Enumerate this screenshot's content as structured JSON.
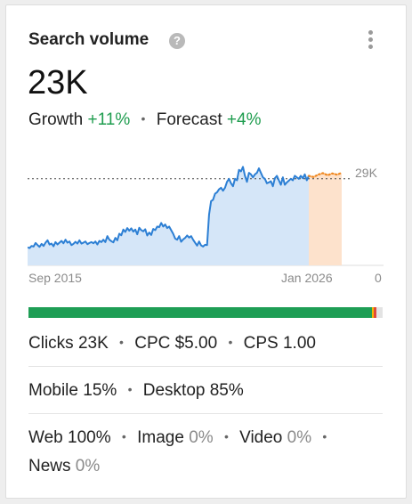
{
  "card": {
    "title": "Search volume",
    "help_icon": "?",
    "menu_icon": "more-vertical-icon"
  },
  "summary": {
    "value": "23K",
    "growth_label": "Growth",
    "growth_value": "+11%",
    "forecast_label": "Forecast",
    "forecast_value": "+4%",
    "separator": "•"
  },
  "chart_data": {
    "type": "area",
    "x_start_label": "Sep 2015",
    "x_end_label": "Jan 2026",
    "ytick_top": "29K",
    "ytick_bottom": "0",
    "ylim": [
      0,
      37000
    ],
    "reference_line": 29000,
    "colors": {
      "history": "#2c7fd4",
      "history_fill": "#d5e6f8",
      "forecast": "#f08a24",
      "forecast_fill": "#fde2cc",
      "reference": "#444444"
    },
    "history": [
      6000,
      5800,
      6500,
      6300,
      7500,
      6800,
      6200,
      7200,
      6500,
      7600,
      8400,
      7000,
      7300,
      6400,
      7800,
      7000,
      7600,
      8200,
      7400,
      8600,
      7600,
      8000,
      6800,
      7200,
      7900,
      7300,
      8400,
      7300,
      7600,
      8000,
      7100,
      7500,
      7800,
      7400,
      8000,
      7000,
      8200,
      7800,
      8600,
      7800,
      9800,
      8600,
      8100,
      7700,
      9200,
      8400,
      10600,
      10100,
      12000,
      11200,
      12500,
      11600,
      12400,
      11300,
      12000,
      10400,
      12600,
      11800,
      11400,
      12100,
      10000,
      11000,
      10200,
      12200,
      11800,
      13000,
      12800,
      14200,
      13000,
      13700,
      12500,
      13000,
      11800,
      10600,
      9000,
      8600,
      9800,
      7900,
      8700,
      9200,
      10000,
      9300,
      9800,
      8600,
      7600,
      6600,
      8000,
      6700,
      6300,
      6900,
      6800,
      17000,
      21500,
      22000,
      24000,
      24500,
      25500,
      26000,
      25000,
      26000,
      28000,
      29000,
      27500,
      26500,
      29000,
      28500,
      32000,
      31500,
      33000,
      30000,
      28000,
      31000,
      30500,
      29500,
      30500,
      31000,
      32500,
      31000,
      29500,
      29000,
      27500,
      27800,
      28200,
      26500,
      29200,
      30000,
      28500,
      27000,
      29500,
      27000,
      27800,
      28400,
      29000,
      28500,
      30000,
      29500,
      29000,
      30000,
      29200,
      30500,
      28500,
      30000
    ],
    "forecast": [
      30000,
      29600,
      30400,
      30900,
      30200,
      30800,
      30400,
      31000
    ]
  },
  "distribution": {
    "colors": [
      "#1e9e55",
      "#f2b705",
      "#e04b3a",
      "#e3e3e3"
    ],
    "segments": [
      0.97,
      0.006,
      0.006
    ]
  },
  "metrics": {
    "clicks": "Clicks 23K",
    "cpc": "CPC $5.00",
    "cps": "CPS 1.00",
    "mobile": "Mobile 15%",
    "desktop": "Desktop 85%",
    "web_label": "Web",
    "web_value": "100%",
    "image_label": "Image",
    "image_value": "0%",
    "video_label": "Video",
    "video_value": "0%",
    "news_label": "News",
    "news_value": "0%",
    "separator": "•"
  }
}
